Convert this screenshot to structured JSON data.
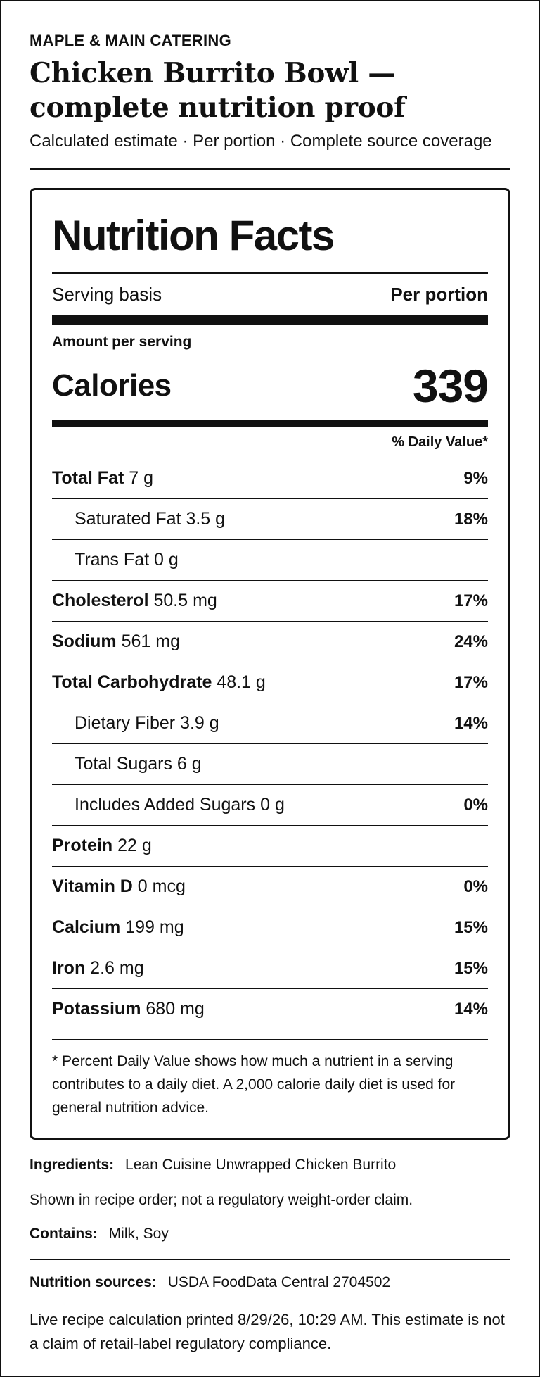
{
  "header": {
    "brand": "MAPLE & MAIN CATERING",
    "title_line1": "Chicken Burrito Bowl —",
    "title_line2": "complete nutrition proof",
    "subtitle": "Calculated estimate · Per portion · Complete source coverage"
  },
  "label": {
    "title": "Nutrition Facts",
    "serving_basis_label": "Serving basis",
    "serving_basis_value": "Per portion",
    "amount_per_serving": "Amount per serving",
    "calories_label": "Calories",
    "calories_value": "339",
    "daily_value_header": "% Daily Value*",
    "nutrients": [
      {
        "name": "Total Fat",
        "amount": "7 g",
        "dv": "9%"
      },
      {
        "name": "Saturated Fat",
        "amount": "3.5 g",
        "dv": "18%"
      },
      {
        "name": "Trans Fat",
        "amount": "0 g",
        "dv": ""
      },
      {
        "name": "Cholesterol",
        "amount": "50.5 mg",
        "dv": "17%"
      },
      {
        "name": "Sodium",
        "amount": "561 mg",
        "dv": "24%"
      },
      {
        "name": "Total Carbohydrate",
        "amount": "48.1 g",
        "dv": "17%"
      },
      {
        "name": "Dietary Fiber",
        "amount": "3.9 g",
        "dv": "14%"
      },
      {
        "name": "Total Sugars",
        "amount": "6 g",
        "dv": ""
      },
      {
        "name": "Includes Added Sugars",
        "amount": "0 g",
        "dv": "0%"
      },
      {
        "name": "Protein",
        "amount": "22 g",
        "dv": ""
      },
      {
        "name": "Vitamin D",
        "amount": "0 mcg",
        "dv": "0%"
      },
      {
        "name": "Calcium",
        "amount": "199 mg",
        "dv": "15%"
      },
      {
        "name": "Iron",
        "amount": "2.6 mg",
        "dv": "15%"
      },
      {
        "name": "Potassium",
        "amount": "680 mg",
        "dv": "14%"
      }
    ],
    "footnote": "* Percent Daily Value shows how much a nutrient in a serving contributes to a daily diet. A 2,000 calorie daily diet is used for general nutrition advice."
  },
  "details": {
    "ingredients_label": "Ingredients:",
    "ingredients_value": "Lean Cuisine Unwrapped Chicken Burrito",
    "order_note": "Shown in recipe order; not a regulatory weight-order claim.",
    "contains_label": "Contains:",
    "contains_value": "Milk, Soy",
    "sources_label": "Nutrition sources:",
    "sources_value": "USDA FoodData Central 2704502",
    "live_note": "Live recipe calculation printed 8/29/26, 10:29 AM. This estimate is not a claim of retail-label regulatory compliance."
  }
}
